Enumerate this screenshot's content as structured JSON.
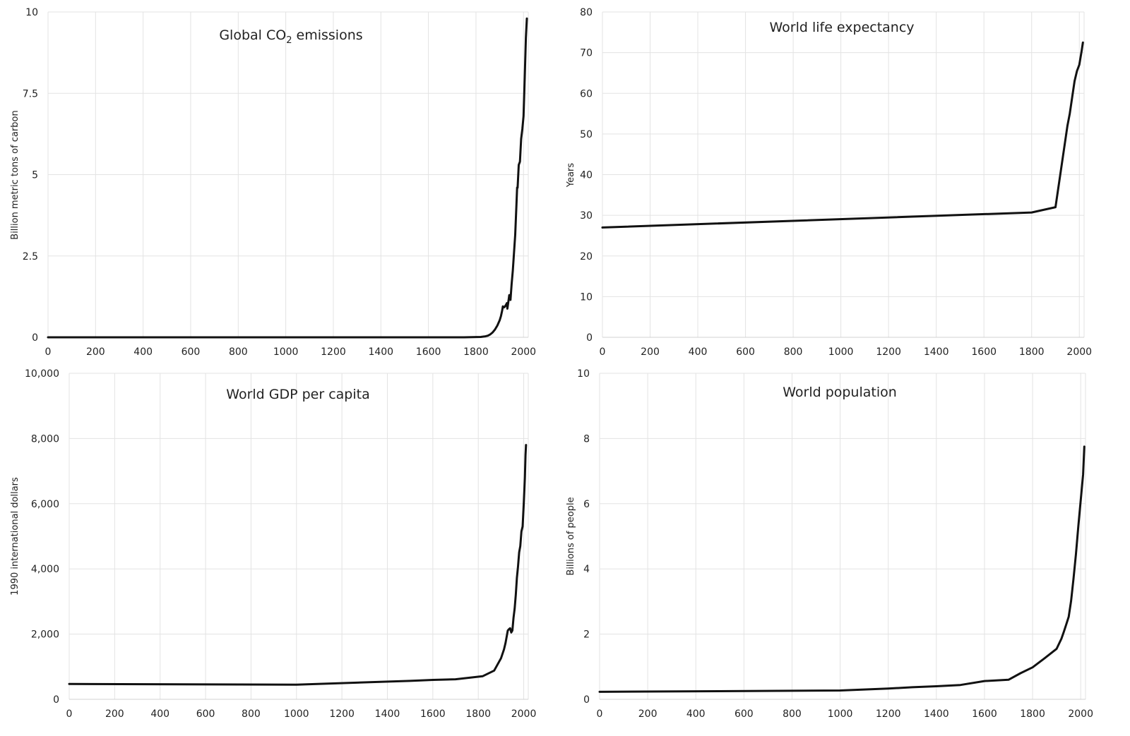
{
  "chart_data": [
    {
      "type": "line",
      "title": "Global CO",
      "title_sub": "2",
      "title_suffix": " emissions",
      "ylabel": "Billion metric tons of carbon",
      "xlabel": "",
      "xlim": [
        0,
        2020
      ],
      "ylim": [
        0,
        10
      ],
      "x_ticks": [
        0,
        200,
        400,
        600,
        800,
        1000,
        1200,
        1400,
        1600,
        1800,
        2000
      ],
      "x_tick_labels": [
        "0",
        "200",
        "400",
        "600",
        "800",
        "1000",
        "1200",
        "1400",
        "1600",
        "1800",
        "2000"
      ],
      "y_ticks": [
        0,
        2.5,
        5,
        7.5,
        10
      ],
      "y_tick_labels": [
        "0",
        "2.5",
        "5",
        "7.5",
        "10"
      ],
      "grid": true,
      "series": [
        {
          "x": [
            0,
            1750,
            1820,
            1840,
            1850,
            1860,
            1870,
            1880,
            1890,
            1900,
            1905,
            1910,
            1913,
            1918,
            1920,
            1925,
            1930,
            1932,
            1935,
            1940,
            1945,
            1950,
            1955,
            1960,
            1965,
            1970,
            1973,
            1975,
            1980,
            1985,
            1990,
            1995,
            2000,
            2005,
            2010,
            2014
          ],
          "y": [
            0,
            0,
            0.01,
            0.03,
            0.05,
            0.09,
            0.15,
            0.24,
            0.36,
            0.53,
            0.65,
            0.82,
            0.95,
            0.92,
            0.93,
            0.98,
            1.05,
            0.88,
            1.03,
            1.3,
            1.15,
            1.63,
            2.05,
            2.6,
            3.15,
            4.05,
            4.6,
            4.6,
            5.3,
            5.4,
            6.1,
            6.4,
            6.8,
            8.0,
            9.2,
            9.8
          ]
        }
      ]
    },
    {
      "type": "line",
      "title": "World life expectancy",
      "ylabel": "Years",
      "xlabel": "",
      "xlim": [
        0,
        2020
      ],
      "ylim": [
        0,
        80
      ],
      "x_ticks": [
        0,
        200,
        400,
        600,
        800,
        1000,
        1200,
        1400,
        1600,
        1800,
        2000
      ],
      "x_tick_labels": [
        "0",
        "200",
        "400",
        "600",
        "800",
        "1000",
        "1200",
        "1400",
        "1600",
        "1800",
        "2000"
      ],
      "y_ticks": [
        0,
        10,
        20,
        30,
        40,
        50,
        60,
        70,
        80
      ],
      "y_tick_labels": [
        "0",
        "10",
        "20",
        "30",
        "40",
        "50",
        "60",
        "70",
        "80"
      ],
      "grid": true,
      "series": [
        {
          "x": [
            0,
            1800,
            1900,
            1950,
            1960,
            1970,
            1980,
            1990,
            2000,
            2010,
            2015
          ],
          "y": [
            27,
            30.7,
            32,
            52,
            55,
            59,
            63,
            65.5,
            67,
            70.5,
            72.5
          ]
        }
      ]
    },
    {
      "type": "line",
      "title": "World GDP per capita",
      "ylabel": "1990 international dollars",
      "xlabel": "",
      "xlim": [
        0,
        2020
      ],
      "ylim": [
        0,
        10000
      ],
      "x_ticks": [
        0,
        200,
        400,
        600,
        800,
        1000,
        1200,
        1400,
        1600,
        1800,
        2000
      ],
      "x_tick_labels": [
        "0",
        "200",
        "400",
        "600",
        "800",
        "1000",
        "1200",
        "1400",
        "1600",
        "1800",
        "2000"
      ],
      "y_ticks": [
        0,
        2000,
        4000,
        6000,
        8000,
        10000
      ],
      "y_tick_labels": [
        "0",
        "2,000",
        "4,000",
        "6,000",
        "8,000",
        "10,000"
      ],
      "grid": true,
      "series": [
        {
          "x": [
            0,
            1000,
            1500,
            1600,
            1700,
            1820,
            1870,
            1900,
            1913,
            1920,
            1930,
            1935,
            1940,
            1945,
            1950,
            1955,
            1960,
            1965,
            1970,
            1975,
            1980,
            1985,
            1990,
            1995,
            2000,
            2005,
            2008,
            2010
          ],
          "y": [
            470,
            450,
            565,
            595,
            615,
            710,
            880,
            1260,
            1530,
            1730,
            2110,
            2150,
            2180,
            2050,
            2110,
            2500,
            2780,
            3200,
            3730,
            4080,
            4510,
            4700,
            5150,
            5300,
            6000,
            6800,
            7500,
            7800
          ]
        }
      ]
    },
    {
      "type": "line",
      "title": "World population",
      "ylabel": "Billions of people",
      "xlabel": "",
      "xlim": [
        0,
        2020
      ],
      "ylim": [
        0,
        10
      ],
      "x_ticks": [
        0,
        200,
        400,
        600,
        800,
        1000,
        1200,
        1400,
        1600,
        1800,
        2000
      ],
      "x_tick_labels": [
        "0",
        "200",
        "400",
        "600",
        "800",
        "1000",
        "1200",
        "1400",
        "1600",
        "1800",
        "2000"
      ],
      "y_ticks": [
        0,
        2,
        4,
        6,
        8,
        10
      ],
      "y_tick_labels": [
        "0",
        "2",
        "4",
        "6",
        "8",
        "10"
      ],
      "grid": true,
      "series": [
        {
          "x": [
            0,
            1000,
            1200,
            1300,
            1400,
            1500,
            1600,
            1700,
            1750,
            1800,
            1850,
            1900,
            1920,
            1930,
            1940,
            1950,
            1960,
            1970,
            1980,
            1990,
            2000,
            2010,
            2015
          ],
          "y": [
            0.23,
            0.27,
            0.33,
            0.37,
            0.4,
            0.44,
            0.56,
            0.6,
            0.8,
            0.98,
            1.26,
            1.55,
            1.86,
            2.07,
            2.3,
            2.53,
            3.02,
            3.7,
            4.44,
            5.3,
            6.1,
            6.9,
            7.75
          ]
        }
      ]
    }
  ]
}
